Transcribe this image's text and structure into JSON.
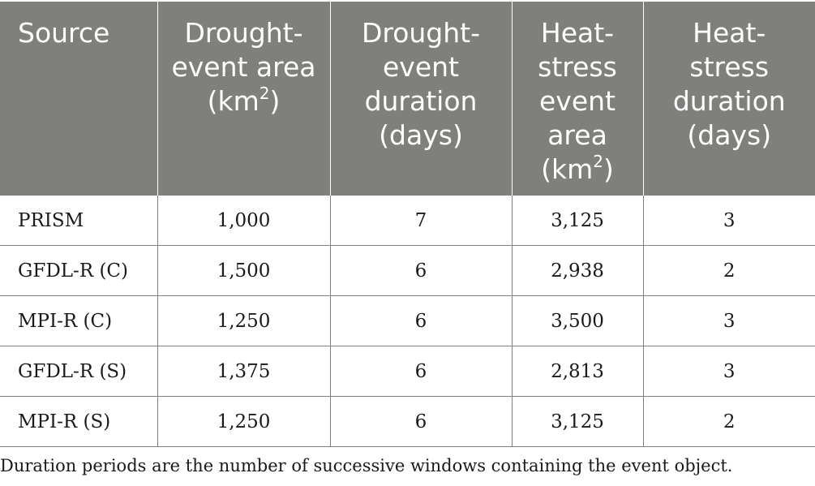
{
  "table": {
    "headers": [
      {
        "text": "Source",
        "sup": "",
        "tail": ""
      },
      {
        "text": "Drought-event area (km",
        "sup": "2",
        "tail": ")"
      },
      {
        "text": "Drought-event duration (days)",
        "sup": "",
        "tail": ""
      },
      {
        "text": "Heat-stress event area (km",
        "sup": "2",
        "tail": ")"
      },
      {
        "text": "Heat-stress duration (days)",
        "sup": "",
        "tail": ""
      }
    ],
    "rows": [
      [
        "PRISM",
        "1,000",
        "7",
        "3,125",
        "3"
      ],
      [
        "GFDL-R (C)",
        "1,500",
        "6",
        "2,938",
        "2"
      ],
      [
        "MPI-R (C)",
        "1,250",
        "6",
        "3,500",
        "3"
      ],
      [
        "GFDL-R (S)",
        "1,375",
        "6",
        "2,813",
        "3"
      ],
      [
        "MPI-R (S)",
        "1,250",
        "6",
        "3,125",
        "2"
      ]
    ]
  },
  "footnote": "Duration periods are the number of successive windows containing the event object.",
  "colors": {
    "header_bg": "#7f7f7c",
    "header_text": "#ffffff",
    "grid": "#7f7f7c"
  }
}
